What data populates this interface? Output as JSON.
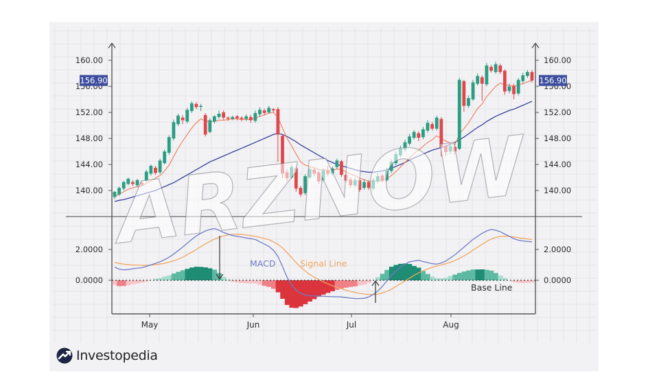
{
  "chart_data": [
    {
      "type": "candlestick",
      "title": "",
      "xlabel": "",
      "ylabel": "",
      "ylim": [
        137,
        161
      ],
      "yticks": [
        "140.00",
        "144.00",
        "148.00",
        "152.00",
        "156.00",
        "160.00"
      ],
      "last_price_label": "156.90",
      "x_months": [
        "May",
        "Jun",
        "Jul",
        "Aug"
      ],
      "grid": true,
      "candles": [
        [
          139.0,
          139.8,
          138.7,
          139.9
        ],
        [
          139.4,
          140.4,
          139.2,
          140.6
        ],
        [
          140.3,
          141.3,
          140.0,
          141.5
        ],
        [
          141.0,
          141.8,
          140.8,
          142.0
        ],
        [
          141.3,
          141.0,
          140.7,
          141.6
        ],
        [
          140.8,
          141.6,
          140.5,
          141.8
        ],
        [
          141.2,
          140.9,
          140.6,
          141.4
        ],
        [
          141.5,
          142.9,
          141.3,
          143.2
        ],
        [
          142.6,
          143.8,
          142.3,
          144.0
        ],
        [
          143.5,
          142.7,
          142.4,
          143.8
        ],
        [
          142.8,
          144.6,
          142.6,
          144.9
        ],
        [
          144.2,
          146.0,
          144.0,
          146.3
        ],
        [
          145.8,
          148.2,
          145.5,
          148.5
        ],
        [
          148.0,
          150.5,
          147.7,
          150.9
        ],
        [
          150.2,
          151.5,
          149.9,
          151.8
        ],
        [
          151.2,
          150.8,
          150.2,
          151.6
        ],
        [
          150.6,
          152.4,
          150.3,
          152.7
        ],
        [
          152.2,
          153.4,
          151.9,
          153.7
        ],
        [
          153.3,
          152.8,
          152.5,
          153.6
        ],
        [
          152.9,
          153.0,
          152.2,
          153.3
        ],
        [
          151.6,
          148.6,
          148.3,
          151.9
        ],
        [
          149.0,
          150.8,
          148.8,
          151.1
        ],
        [
          150.6,
          151.4,
          150.3,
          151.6
        ],
        [
          151.3,
          151.8,
          151.0,
          152.3
        ],
        [
          152.0,
          151.2,
          150.9,
          152.3
        ],
        [
          151.2,
          151.1,
          150.7,
          151.4
        ],
        [
          151.0,
          151.3,
          150.8,
          151.5
        ],
        [
          151.4,
          151.1,
          150.8,
          151.6
        ],
        [
          151.2,
          151.0,
          150.6,
          151.4
        ],
        [
          151.0,
          151.4,
          150.7,
          151.7
        ],
        [
          151.3,
          150.8,
          150.4,
          151.6
        ],
        [
          150.7,
          151.9,
          150.4,
          152.3
        ],
        [
          151.7,
          152.4,
          151.3,
          152.8
        ],
        [
          152.3,
          151.9,
          151.6,
          152.6
        ],
        [
          152.0,
          152.7,
          151.8,
          153.0
        ],
        [
          152.5,
          152.3,
          152.0,
          152.7
        ],
        [
          152.5,
          148.6,
          144.4,
          152.8
        ],
        [
          148.4,
          142.6,
          141.9,
          148.6
        ],
        [
          142.8,
          141.9,
          141.4,
          143.3
        ],
        [
          142.0,
          143.6,
          141.8,
          144.0
        ],
        [
          143.4,
          140.3,
          139.8,
          143.7
        ],
        [
          140.4,
          139.4,
          139.0,
          140.7
        ],
        [
          139.6,
          142.2,
          139.3,
          142.5
        ],
        [
          142.0,
          143.3,
          141.8,
          143.6
        ],
        [
          143.2,
          142.6,
          142.2,
          143.5
        ],
        [
          142.8,
          141.4,
          141.0,
          143.0
        ],
        [
          141.6,
          143.1,
          141.4,
          143.4
        ],
        [
          143.0,
          142.6,
          142.2,
          143.8
        ],
        [
          142.6,
          143.4,
          142.3,
          143.7
        ],
        [
          143.6,
          144.6,
          143.3,
          144.9
        ],
        [
          144.5,
          142.4,
          142.1,
          144.7
        ],
        [
          142.4,
          141.5,
          141.2,
          142.8
        ],
        [
          141.7,
          140.8,
          140.4,
          142.0
        ],
        [
          140.8,
          141.6,
          140.5,
          142.0
        ],
        [
          141.6,
          140.1,
          139.8,
          141.9
        ],
        [
          140.4,
          141.3,
          140.1,
          141.7
        ],
        [
          141.3,
          140.4,
          140.1,
          141.6
        ],
        [
          140.3,
          141.6,
          140.0,
          141.9
        ],
        [
          141.4,
          142.2,
          141.1,
          142.7
        ],
        [
          142.3,
          141.5,
          141.2,
          142.6
        ],
        [
          141.6,
          143.2,
          141.4,
          143.5
        ],
        [
          143.0,
          144.4,
          142.7,
          144.8
        ],
        [
          144.2,
          145.6,
          143.9,
          146.0
        ],
        [
          145.4,
          146.5,
          145.1,
          146.9
        ],
        [
          146.3,
          147.4,
          146.0,
          147.8
        ],
        [
          147.2,
          148.3,
          146.9,
          148.7
        ],
        [
          148.1,
          149.0,
          147.8,
          149.3
        ],
        [
          148.8,
          148.1,
          147.6,
          149.1
        ],
        [
          148.2,
          149.4,
          147.9,
          149.8
        ],
        [
          149.2,
          150.4,
          148.9,
          150.8
        ],
        [
          150.2,
          149.5,
          149.2,
          150.5
        ],
        [
          149.5,
          151.2,
          149.2,
          151.5
        ],
        [
          151.0,
          146.6,
          145.2,
          151.3
        ],
        [
          146.8,
          145.9,
          145.3,
          147.1
        ],
        [
          146.0,
          146.8,
          145.6,
          147.2
        ],
        [
          146.7,
          146.0,
          145.5,
          147.0
        ],
        [
          146.4,
          157.0,
          146.2,
          157.3
        ],
        [
          156.8,
          153.0,
          152.1,
          157.0
        ],
        [
          153.0,
          154.2,
          152.7,
          154.6
        ],
        [
          154.0,
          156.6,
          153.8,
          157.0
        ],
        [
          156.4,
          157.6,
          156.1,
          158.0
        ],
        [
          157.4,
          156.4,
          153.8,
          157.7
        ],
        [
          156.3,
          159.2,
          156.0,
          159.6
        ],
        [
          159.0,
          158.4,
          158.1,
          159.3
        ],
        [
          158.2,
          159.4,
          157.9,
          159.8
        ],
        [
          159.2,
          158.2,
          157.9,
          159.5
        ],
        [
          158.4,
          155.2,
          154.7,
          158.6
        ],
        [
          155.3,
          156.0,
          154.9,
          156.4
        ],
        [
          156.1,
          154.8,
          154.0,
          156.4
        ],
        [
          154.9,
          157.0,
          154.6,
          157.3
        ],
        [
          156.8,
          157.7,
          156.5,
          158.1
        ],
        [
          157.6,
          158.2,
          157.3,
          158.5
        ],
        [
          158.2,
          156.9,
          156.6,
          158.5
        ]
      ],
      "fast_ma": [
        139.1,
        139.4,
        139.8,
        140.2,
        140.4,
        140.6,
        140.7,
        141.1,
        141.5,
        141.9,
        142.3,
        143.0,
        143.9,
        145.2,
        146.5,
        147.6,
        148.6,
        149.6,
        150.4,
        151.0,
        150.7,
        150.6,
        150.6,
        150.8,
        150.8,
        150.9,
        151.0,
        151.0,
        150.9,
        150.9,
        150.9,
        151.1,
        151.4,
        151.6,
        151.9,
        152.0,
        151.2,
        149.6,
        148.0,
        146.9,
        145.6,
        144.4,
        143.9,
        143.7,
        143.5,
        143.2,
        143.2,
        143.1,
        143.1,
        143.3,
        143.2,
        142.9,
        142.5,
        142.3,
        141.9,
        141.7,
        141.4,
        141.4,
        141.5,
        141.5,
        141.8,
        142.3,
        142.9,
        143.6,
        144.3,
        145.0,
        145.7,
        146.2,
        146.8,
        147.4,
        147.8,
        148.4,
        148.0,
        147.6,
        147.3,
        147.0,
        148.7,
        149.5,
        150.4,
        151.5,
        152.6,
        153.3,
        154.4,
        155.2,
        156.0,
        156.5,
        156.2,
        156.2,
        156.0,
        156.2,
        156.4,
        156.7,
        156.9
      ],
      "slow_ma": [
        138.3,
        138.5,
        138.6,
        138.8,
        139.0,
        139.2,
        139.4,
        139.6,
        139.8,
        140.0,
        140.3,
        140.6,
        140.9,
        141.2,
        141.6,
        142.0,
        142.4,
        142.8,
        143.2,
        143.6,
        144.0,
        144.4,
        144.7,
        145.0,
        145.3,
        145.6,
        145.9,
        146.2,
        146.5,
        146.8,
        147.1,
        147.4,
        147.7,
        148.0,
        148.3,
        148.6,
        148.8,
        148.6,
        148.3,
        147.9,
        147.5,
        147.0,
        146.6,
        146.2,
        145.8,
        145.4,
        145.0,
        144.6,
        144.3,
        144.0,
        143.8,
        143.6,
        143.4,
        143.2,
        143.0,
        142.9,
        142.8,
        142.8,
        142.9,
        143.0,
        143.2,
        143.4,
        143.7,
        144.0,
        144.3,
        144.7,
        145.0,
        145.3,
        145.6,
        145.9,
        146.2,
        146.4,
        146.6,
        146.8,
        147.1,
        147.4,
        147.8,
        148.2,
        148.7,
        149.2,
        149.7,
        150.1,
        150.6,
        151.0,
        151.4,
        151.7,
        152.0,
        152.3,
        152.5,
        152.8,
        153.1,
        153.4,
        153.7
      ]
    },
    {
      "type": "macd",
      "title": "",
      "ylim": [
        -1.3,
        3.8
      ],
      "yticks": [
        "0.0000",
        "2.0000"
      ],
      "series": [
        {
          "name": "MACD",
          "color": "#7079c6"
        },
        {
          "name": "Signal Line",
          "color": "#f2a65e"
        }
      ],
      "macd": [
        0.85,
        0.72,
        0.68,
        0.7,
        0.75,
        0.78,
        0.82,
        0.9,
        1.0,
        1.1,
        1.2,
        1.34,
        1.5,
        1.7,
        1.92,
        2.15,
        2.4,
        2.65,
        2.88,
        3.05,
        3.2,
        3.3,
        3.35,
        3.25,
        3.1,
        3.0,
        2.9,
        2.85,
        2.8,
        2.75,
        2.7,
        2.65,
        2.5,
        2.35,
        2.2,
        1.95,
        1.55,
        0.9,
        0.2,
        -0.3,
        -0.65,
        -0.85,
        -0.95,
        -1.0,
        -1.02,
        -1.02,
        -1.03,
        -1.05,
        -1.06,
        -1.07,
        -1.08,
        -1.12,
        -1.15,
        -1.18,
        -1.18,
        -1.17,
        -1.08,
        -0.92,
        -0.7,
        -0.4,
        -0.05,
        0.3,
        0.6,
        0.85,
        1.05,
        1.2,
        1.25,
        1.3,
        1.22,
        1.15,
        1.08,
        1.05,
        1.12,
        1.25,
        1.45,
        1.65,
        1.9,
        2.15,
        2.4,
        2.65,
        2.85,
        3.05,
        3.2,
        3.3,
        3.25,
        3.15,
        3.0,
        2.85,
        2.7,
        2.6,
        2.55,
        2.52,
        2.5
      ],
      "signal": [
        1.15,
        1.1,
        1.05,
        1.02,
        0.99,
        0.98,
        0.97,
        0.97,
        0.99,
        1.01,
        1.06,
        1.1,
        1.18,
        1.26,
        1.37,
        1.5,
        1.66,
        1.82,
        2.0,
        2.18,
        2.36,
        2.52,
        2.66,
        2.78,
        2.88,
        2.95,
        2.98,
        2.99,
        2.97,
        2.94,
        2.9,
        2.85,
        2.79,
        2.71,
        2.63,
        2.5,
        2.33,
        2.1,
        1.8,
        1.48,
        1.15,
        0.85,
        0.6,
        0.38,
        0.2,
        0.04,
        -0.1,
        -0.23,
        -0.35,
        -0.45,
        -0.55,
        -0.64,
        -0.72,
        -0.79,
        -0.85,
        -0.89,
        -0.92,
        -0.93,
        -0.9,
        -0.82,
        -0.72,
        -0.58,
        -0.4,
        -0.22,
        -0.04,
        0.14,
        0.32,
        0.48,
        0.62,
        0.74,
        0.84,
        0.92,
        1.0,
        1.08,
        1.17,
        1.28,
        1.42,
        1.58,
        1.76,
        1.95,
        2.15,
        2.34,
        2.52,
        2.67,
        2.78,
        2.84,
        2.86,
        2.85,
        2.81,
        2.76,
        2.72,
        2.68,
        2.64
      ]
    }
  ],
  "annotations": {
    "macd": "MACD",
    "signal": "Signal Line",
    "base_line": "Base Line"
  },
  "watermark": "ARZNOW",
  "logo": "Investopedia",
  "colors": {
    "up": "#2a9d82",
    "down": "#e0474c",
    "fast_ma": "#ee8466",
    "slow_ma": "#39409a",
    "label_bg": "#3d4e9e",
    "hist_pos": [
      "#1e8d74",
      "#5db9a2",
      "#a6dccd"
    ],
    "hist_neg": [
      "#dc343c",
      "#ef8086",
      "#f7c3c6"
    ]
  }
}
